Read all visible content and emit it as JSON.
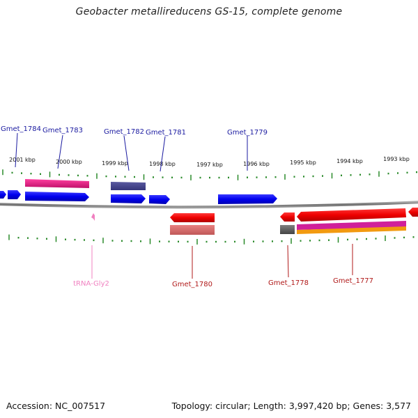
{
  "title": "Geobacter metallireducens GS-15, complete genome",
  "footer": {
    "accession": "Accession: NC_007517",
    "summary": "Topology: circular; Length: 3,997,420 bp; Genes: 3,577"
  },
  "scale_labels": [
    "2001 kbp",
    "2000 kbp",
    "1999 kbp",
    "1998 kbp",
    "1997 kbp",
    "1996 kbp",
    "1995 kbp",
    "1994 kbp",
    "1993 kbp"
  ],
  "genes_top": [
    "Gmet_1784",
    "Gmet_1783",
    "Gmet_1782",
    "Gmet_1781",
    "Gmet_1779"
  ],
  "genes_bottom": [
    "tRNA-Gly2",
    "Gmet_1780",
    "Gmet_1778",
    "Gmet_1777"
  ],
  "colors": {
    "forward_gene": "#0000ee",
    "reverse_gene": "#ee0000",
    "trna": "#f080c0",
    "tick": "#2a8a2a",
    "backbone": "#808080",
    "top_label": "#1a1aa0",
    "bottom_label": "#b01818"
  }
}
